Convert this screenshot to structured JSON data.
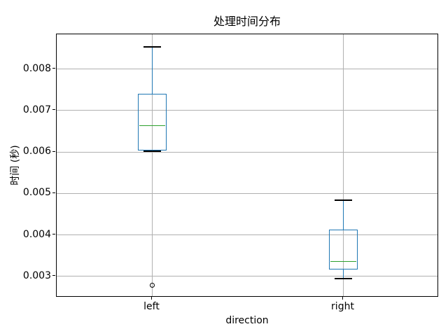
{
  "chart_data": {
    "type": "boxplot",
    "title": "处理时间分布",
    "xlabel": "direction",
    "ylabel": "时间 (秒)",
    "categories": [
      "left",
      "right"
    ],
    "positions": [
      1,
      2
    ],
    "xlim": [
      0.5,
      2.5
    ],
    "ylim": [
      0.00249,
      0.00884
    ],
    "yticks": [
      0.003,
      0.004,
      0.005,
      0.006,
      0.007,
      0.008
    ],
    "ytick_labels": [
      "0.003",
      "0.004",
      "0.005",
      "0.006",
      "0.007",
      "0.008"
    ],
    "grid": true,
    "box_width": 0.15,
    "cap_width_fraction": 0.6,
    "series": [
      {
        "name": "left",
        "whisker_low": 0.00602,
        "q1": 0.00604,
        "median": 0.00664,
        "q3": 0.0074,
        "whisker_high": 0.00854,
        "outliers": [
          0.00278
        ]
      },
      {
        "name": "right",
        "whisker_low": 0.00295,
        "q1": 0.00316,
        "median": 0.00336,
        "q3": 0.00412,
        "whisker_high": 0.00484,
        "outliers": []
      }
    ],
    "colors": {
      "box": "#1f77b4",
      "whisker": "#1f77b4",
      "median": "#2ca02c",
      "cap": "#000000",
      "flier_edge": "#000000",
      "grid": "#b0b0b0",
      "spine": "#000000",
      "background": "#ffffff",
      "text": "#000000"
    }
  }
}
